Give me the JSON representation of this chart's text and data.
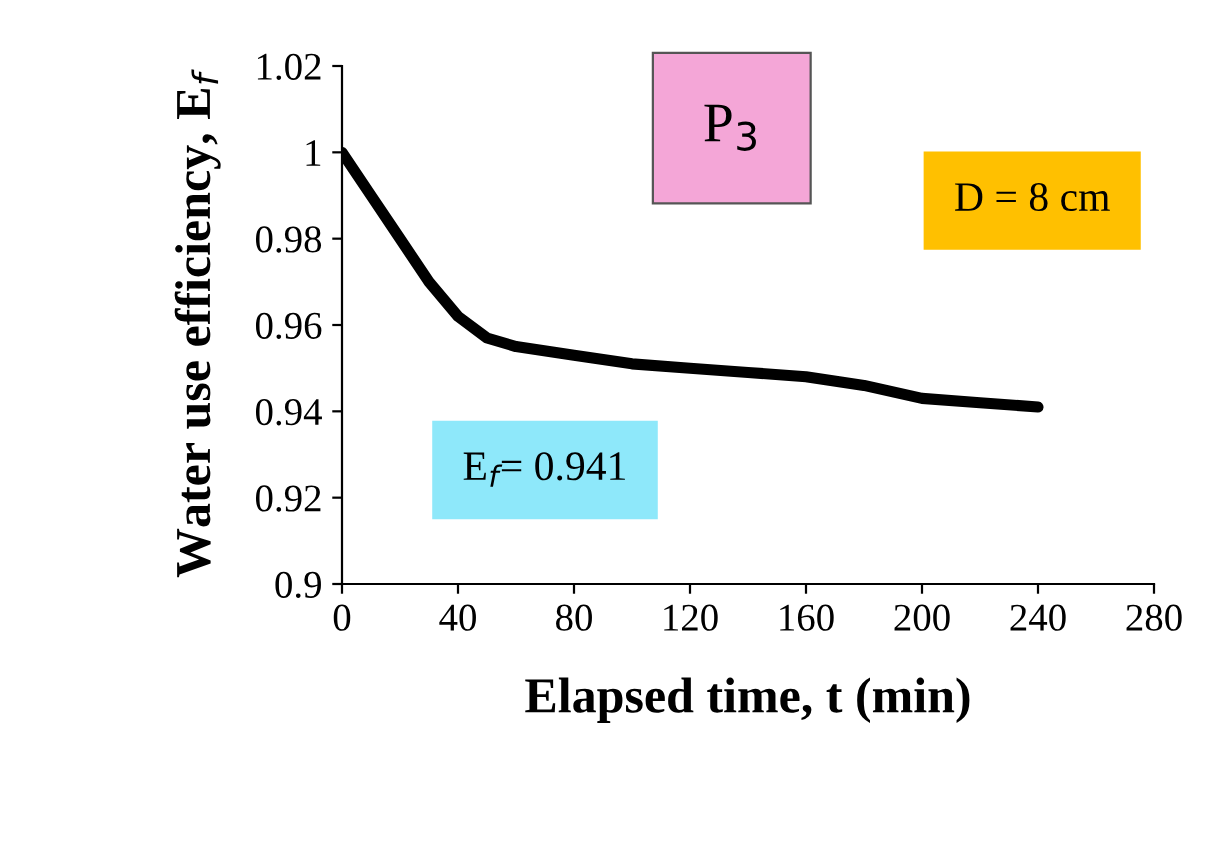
{
  "chart_data": {
    "type": "line",
    "xlabel": "Elapsed time, t (min)",
    "ylabel": "Water use efficiency, E$_{f}$",
    "x": [
      0,
      10,
      20,
      30,
      40,
      50,
      60,
      80,
      100,
      120,
      140,
      160,
      180,
      200,
      220,
      240
    ],
    "series": [
      {
        "color": "#000000",
        "values": [
          1.0,
          0.99,
          0.98,
          0.97,
          0.962,
          0.957,
          0.955,
          0.953,
          0.951,
          0.95,
          0.949,
          0.948,
          0.946,
          0.943,
          0.942,
          0.941
        ]
      }
    ],
    "annotations": [
      "P$_{3}$",
      "D = 8 cm",
      "E$_{f}$= 0.941"
    ],
    "xlim": [
      0,
      280
    ],
    "xticks": [
      0,
      40,
      80,
      120,
      160,
      200,
      240,
      280
    ],
    "ylim": [
      0.9,
      1.02
    ],
    "yticks": [
      0.9,
      0.92,
      0.94,
      0.96,
      0.98,
      1,
      1.02
    ],
    "grid": false,
    "legend": false,
    "marker": "none",
    "line_style": "solid"
  }
}
